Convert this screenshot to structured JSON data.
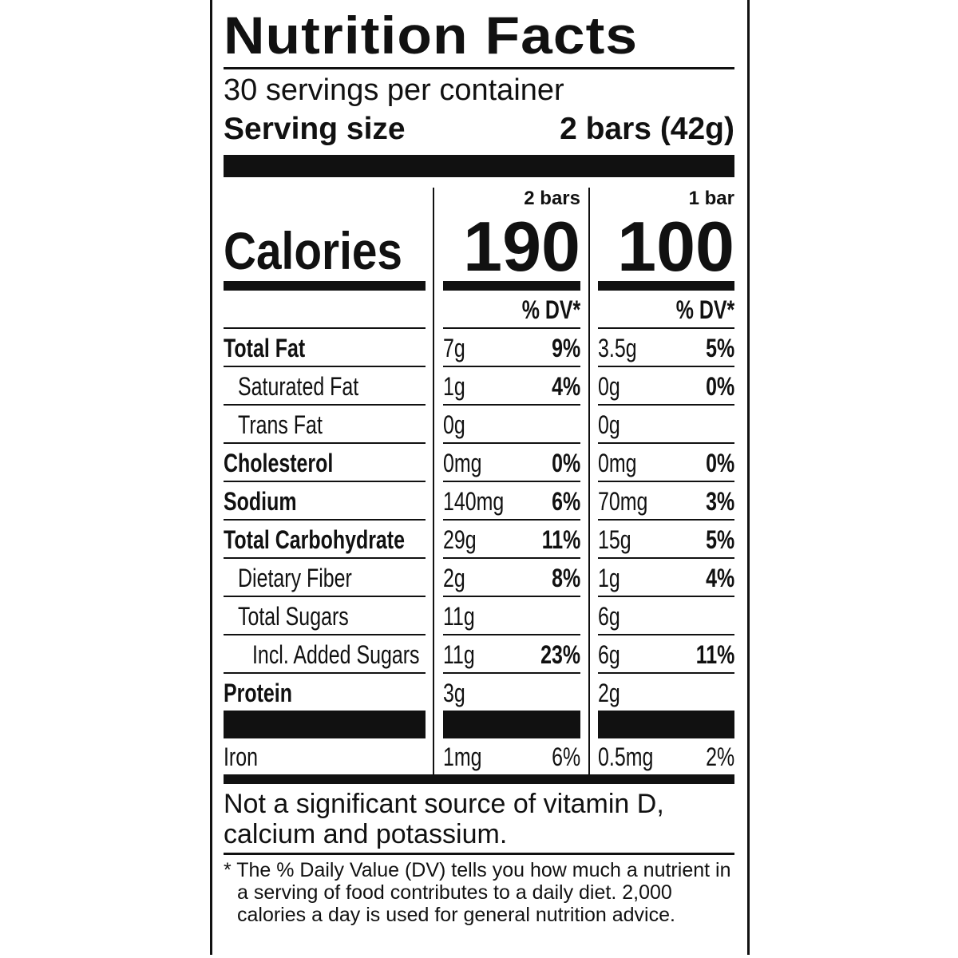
{
  "title": "Nutrition Facts",
  "servings_per_container": "30 servings per container",
  "serving_size_label": "Serving size",
  "serving_size_value": "2 bars (42g)",
  "columns": [
    {
      "header": "2 bars",
      "calories": "190",
      "dv_label": "% DV*"
    },
    {
      "header": "1 bar",
      "calories": "100",
      "dv_label": "% DV*"
    }
  ],
  "calories_label": "Calories",
  "rows": [
    {
      "name": "Total Fat",
      "bold": true,
      "indent": 0,
      "v1": "7g",
      "d1": "9%",
      "v2": "3.5g",
      "d2": "5%"
    },
    {
      "name": "Saturated Fat",
      "bold": false,
      "indent": 1,
      "v1": "1g",
      "d1": "4%",
      "v2": "0g",
      "d2": "0%"
    },
    {
      "name": "Trans Fat",
      "bold": false,
      "indent": 1,
      "v1": "0g",
      "d1": "",
      "v2": "0g",
      "d2": ""
    },
    {
      "name": "Cholesterol",
      "bold": true,
      "indent": 0,
      "v1": "0mg",
      "d1": "0%",
      "v2": "0mg",
      "d2": "0%"
    },
    {
      "name": "Sodium",
      "bold": true,
      "indent": 0,
      "v1": "140mg",
      "d1": "6%",
      "v2": "70mg",
      "d2": "3%"
    },
    {
      "name": "Total Carbohydrate",
      "bold": true,
      "indent": 0,
      "v1": "29g",
      "d1": "11%",
      "v2": "15g",
      "d2": "5%"
    },
    {
      "name": "Dietary Fiber",
      "bold": false,
      "indent": 1,
      "v1": "2g",
      "d1": "8%",
      "v2": "1g",
      "d2": "4%"
    },
    {
      "name": "Total Sugars",
      "bold": false,
      "indent": 1,
      "v1": "11g",
      "d1": "",
      "v2": "6g",
      "d2": ""
    },
    {
      "name": "Incl. Added Sugars",
      "bold": false,
      "indent": 2,
      "v1": "11g",
      "d1": "23%",
      "v2": "6g",
      "d2": "11%"
    },
    {
      "name": "Protein",
      "bold": true,
      "indent": 0,
      "v1": "3g",
      "d1": "",
      "v2": "2g",
      "d2": ""
    }
  ],
  "iron": {
    "name": "Iron",
    "v1": "1mg",
    "d1": "6%",
    "v2": "0.5mg",
    "d2": "2%"
  },
  "footnote_vitamins": "Not a significant source of vitamin D, calcium and potassium.",
  "footnote_dv": "* The % Daily Value (DV) tells you how much a nutrient in a serving of food contributes to a daily diet. 2,000 calories a day is used for general nutrition advice."
}
